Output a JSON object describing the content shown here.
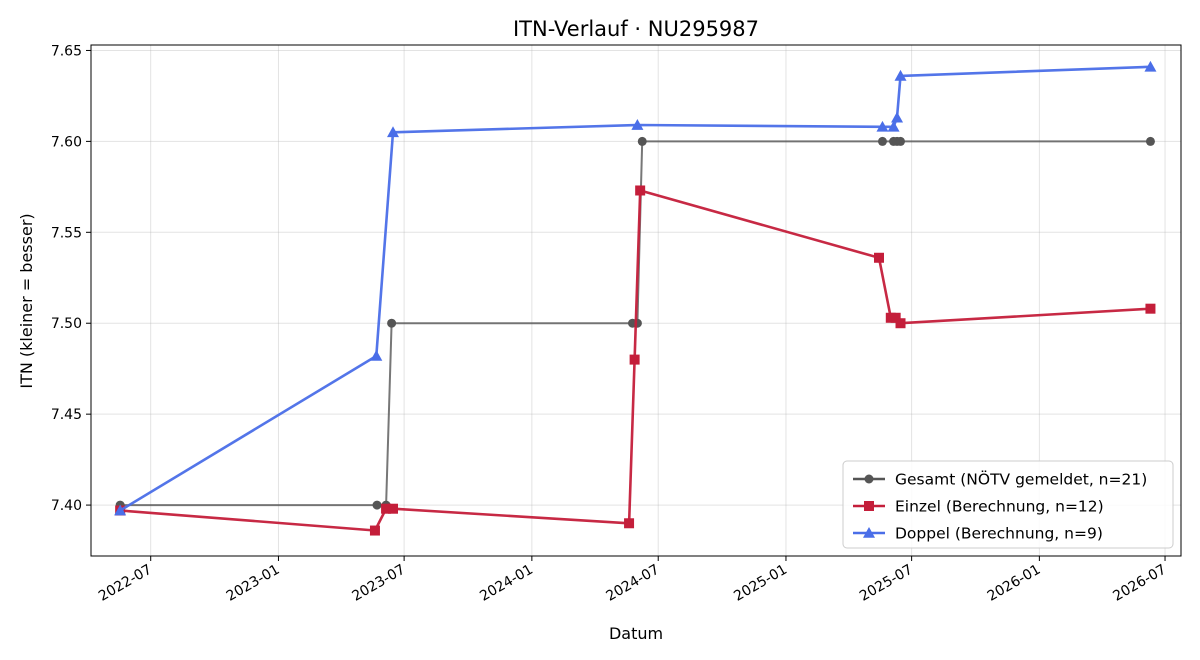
{
  "chart_data": {
    "type": "line",
    "title": "ITN-Verlauf · NU295987",
    "xlabel": "Datum",
    "ylabel": "ITN  (kleiner = besser)",
    "x_is_date": true,
    "xlim": [
      "2022-04-06",
      "2026-07-24"
    ],
    "ylim": [
      7.372,
      7.653
    ],
    "x_ticks": [
      {
        "date": "2022-07-01",
        "label": "2022-07"
      },
      {
        "date": "2023-01-01",
        "label": "2023-01"
      },
      {
        "date": "2023-07-01",
        "label": "2023-07"
      },
      {
        "date": "2024-01-01",
        "label": "2024-01"
      },
      {
        "date": "2024-07-01",
        "label": "2024-07"
      },
      {
        "date": "2025-01-01",
        "label": "2025-01"
      },
      {
        "date": "2025-07-01",
        "label": "2025-07"
      },
      {
        "date": "2026-01-01",
        "label": "2026-01"
      },
      {
        "date": "2026-07-01",
        "label": "2026-07"
      }
    ],
    "y_ticks": [
      {
        "value": 7.4,
        "label": "7.40"
      },
      {
        "value": 7.45,
        "label": "7.45"
      },
      {
        "value": 7.5,
        "label": "7.50"
      },
      {
        "value": 7.55,
        "label": "7.55"
      },
      {
        "value": 7.6,
        "label": "7.60"
      },
      {
        "value": 7.65,
        "label": "7.65"
      }
    ],
    "grid": true,
    "legend_position": "lower-right",
    "series": [
      {
        "name": "Gesamt (NÖTV gemeldet, n=21)",
        "color": "#555555",
        "marker": "circle",
        "points": [
          {
            "x": "2022-05-18",
            "y": 7.4
          },
          {
            "x": "2023-05-23",
            "y": 7.4
          },
          {
            "x": "2023-06-05",
            "y": 7.4
          },
          {
            "x": "2023-06-13",
            "y": 7.5
          },
          {
            "x": "2024-05-25",
            "y": 7.5
          },
          {
            "x": "2024-06-01",
            "y": 7.5
          },
          {
            "x": "2024-06-08",
            "y": 7.6
          },
          {
            "x": "2025-05-20",
            "y": 7.6
          },
          {
            "x": "2025-06-05",
            "y": 7.6
          },
          {
            "x": "2025-06-10",
            "y": 7.6
          },
          {
            "x": "2025-06-15",
            "y": 7.6
          },
          {
            "x": "2026-06-10",
            "y": 7.6
          }
        ]
      },
      {
        "name": "Einzel (Berechnung, n=12)",
        "color": "#c41e3a",
        "marker": "square",
        "points": [
          {
            "x": "2022-05-18",
            "y": 7.397
          },
          {
            "x": "2023-05-20",
            "y": 7.386
          },
          {
            "x": "2023-06-05",
            "y": 7.398
          },
          {
            "x": "2023-06-15",
            "y": 7.398
          },
          {
            "x": "2024-05-20",
            "y": 7.39
          },
          {
            "x": "2024-05-28",
            "y": 7.48
          },
          {
            "x": "2024-06-05",
            "y": 7.573
          },
          {
            "x": "2025-05-15",
            "y": 7.536
          },
          {
            "x": "2025-06-01",
            "y": 7.503
          },
          {
            "x": "2025-06-08",
            "y": 7.503
          },
          {
            "x": "2025-06-15",
            "y": 7.5
          },
          {
            "x": "2026-06-10",
            "y": 7.508
          }
        ]
      },
      {
        "name": "Doppel (Berechnung, n=9)",
        "color": "#4a6ee8",
        "marker": "triangle",
        "points": [
          {
            "x": "2022-05-18",
            "y": 7.397
          },
          {
            "x": "2023-05-22",
            "y": 7.482
          },
          {
            "x": "2023-06-15",
            "y": 7.605
          },
          {
            "x": "2024-06-01",
            "y": 7.609
          },
          {
            "x": "2025-05-20",
            "y": 7.608
          },
          {
            "x": "2025-06-05",
            "y": 7.608
          },
          {
            "x": "2025-06-10",
            "y": 7.613
          },
          {
            "x": "2025-06-15",
            "y": 7.636
          },
          {
            "x": "2026-06-10",
            "y": 7.641
          }
        ]
      }
    ]
  }
}
